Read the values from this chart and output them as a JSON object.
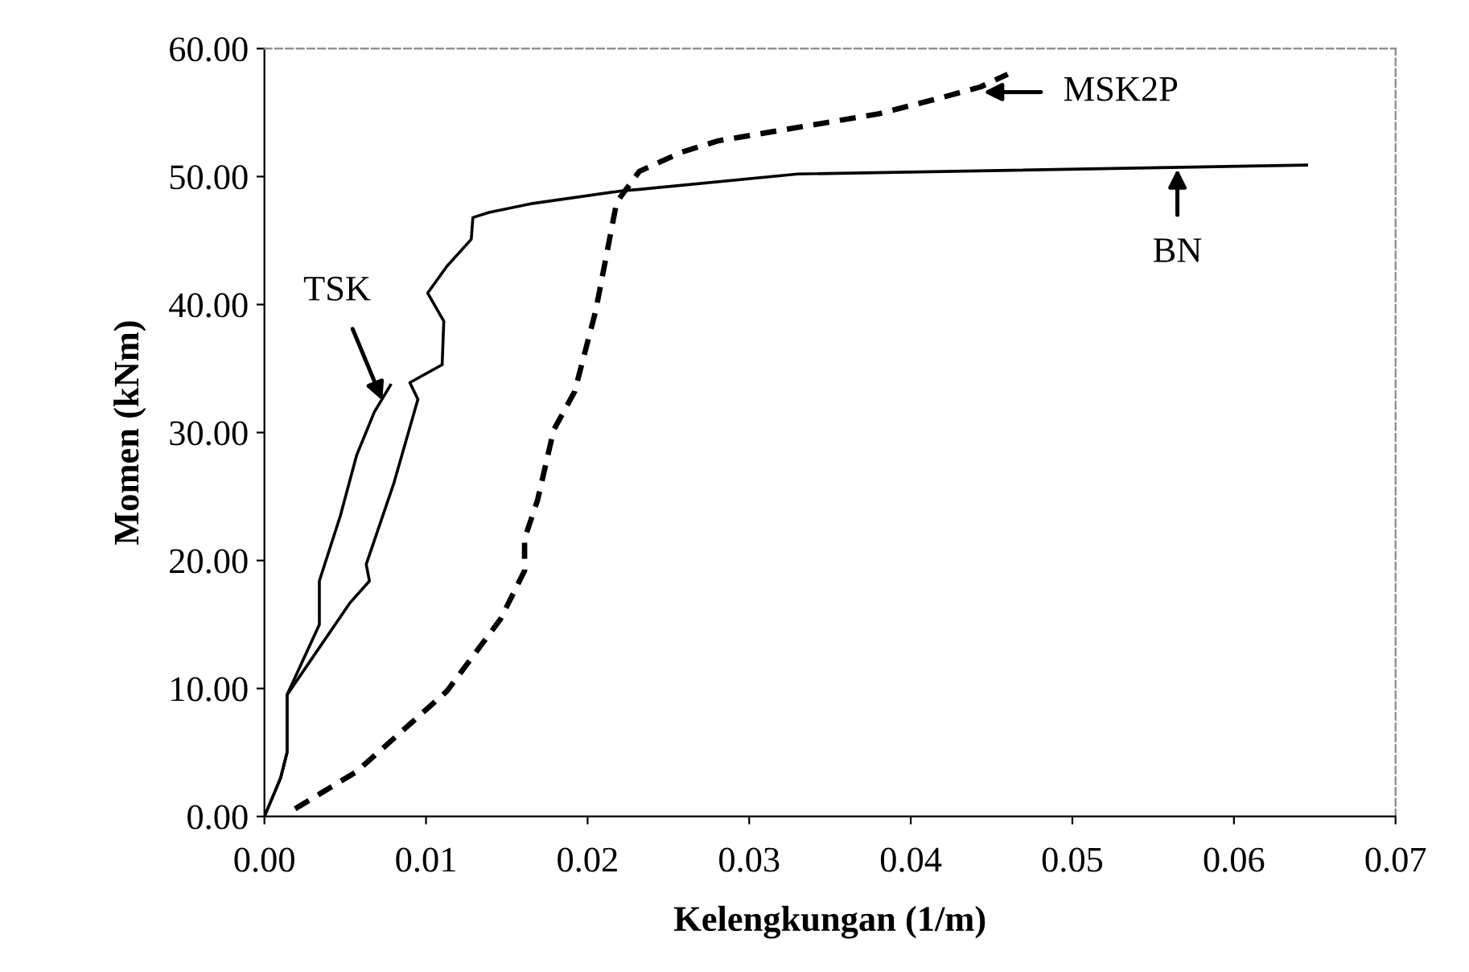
{
  "chart_data": {
    "type": "line",
    "xlabel": "Kelengkungan (1/m)",
    "ylabel": "Momen (kNm)",
    "xlim": [
      0,
      0.07
    ],
    "ylim": [
      0,
      60
    ],
    "xticks": [
      {
        "value": 0,
        "label": "0.00"
      },
      {
        "value": 0.01,
        "label": "0.01"
      },
      {
        "value": 0.02,
        "label": "0.02"
      },
      {
        "value": 0.03,
        "label": "0.03"
      },
      {
        "value": 0.04,
        "label": "0.04"
      },
      {
        "value": 0.05,
        "label": "0.05"
      },
      {
        "value": 0.06,
        "label": "0.06"
      },
      {
        "value": 0.07,
        "label": "0.07"
      }
    ],
    "yticks": [
      {
        "value": 0,
        "label": "0.00"
      },
      {
        "value": 10,
        "label": "10.00"
      },
      {
        "value": 20,
        "label": "20.00"
      },
      {
        "value": 30,
        "label": "30.00"
      },
      {
        "value": 40,
        "label": "40.00"
      },
      {
        "value": 50,
        "label": "50.00"
      },
      {
        "value": 60,
        "label": "60.00"
      }
    ],
    "grid": false,
    "legend": false,
    "marker": "none",
    "series": [
      {
        "color": "#000000",
        "line_style": "solid",
        "x": [
          0,
          0.001,
          0.0014,
          0.0014,
          0.0034,
          0.0034,
          0.0047,
          0.0057,
          0.0068,
          0.0078
        ],
        "values": [
          0,
          3,
          5,
          9.5,
          15,
          18.4,
          23.5,
          28.2,
          31.6,
          33.7
        ]
      },
      {
        "color": "#000000",
        "line_style": "solid",
        "x": [
          0,
          0.001,
          0.0014,
          0.0014,
          0.0053,
          0.0065,
          0.0063,
          0.008,
          0.0095,
          0.009,
          0.011,
          0.0111,
          0.0101,
          0.0113,
          0.0128,
          0.0129,
          0.0139,
          0.0166,
          0.0222,
          0.0232,
          0.033,
          0.0645
        ],
        "values": [
          0,
          3,
          5,
          9.5,
          16.7,
          18.4,
          19.7,
          26,
          32.6,
          33.9,
          35.3,
          38.7,
          40.9,
          43,
          45.1,
          46.8,
          47.2,
          47.9,
          48.9,
          49,
          50.2,
          50.9
        ]
      },
      {
        "color": "#000000",
        "line_style": "dashed",
        "x": [
          0.0019,
          0.0057,
          0.0113,
          0.0146,
          0.0161,
          0.0161,
          0.0169,
          0.0179,
          0.0192,
          0.0205,
          0.0218,
          0.0232,
          0.0258,
          0.0281,
          0.038,
          0.0417,
          0.0443,
          0.046
        ],
        "values": [
          0.6,
          3.5,
          9.8,
          15.4,
          19.2,
          21.7,
          24.7,
          30.2,
          33.2,
          39.5,
          48,
          50.4,
          51.9,
          52.8,
          54.9,
          56.1,
          57,
          58
        ]
      }
    ],
    "annotations": [
      {
        "text": "TSK",
        "x": 0.0073,
        "y": 32.5
      },
      {
        "text": "MSK2P",
        "x": 0.0445,
        "y": 56.6
      },
      {
        "text": "BN",
        "x": 0.0565,
        "y": 50.6
      }
    ]
  }
}
